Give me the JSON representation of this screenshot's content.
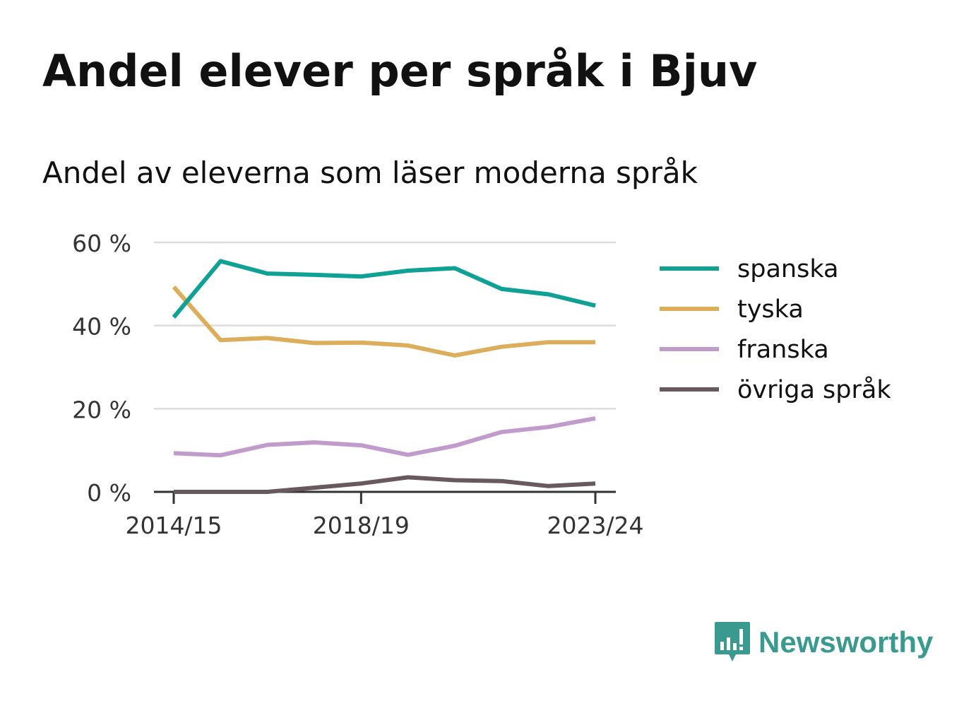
{
  "title": "Andel elever per språk i Bjuv",
  "subtitle": "Andel av eleverna som läser moderna språk",
  "brand": {
    "name": "Newsworthy",
    "icon": "newsworthy-logo-icon",
    "color": "#3a9a90"
  },
  "chart_data": {
    "type": "line",
    "x": [
      "2014/15",
      "2015/16",
      "2016/17",
      "2017/18",
      "2018/19",
      "2019/20",
      "2020/21",
      "2021/22",
      "2022/23",
      "2023/24"
    ],
    "x_tick_labels": [
      "2014/15",
      "2018/19",
      "2023/24"
    ],
    "y_ticks": [
      "0 %",
      "20 %",
      "40 %",
      "60 %"
    ],
    "ylim": [
      0,
      60
    ],
    "grid": true,
    "legend": "right",
    "series": [
      {
        "name": "spanska",
        "color": "#0fa195",
        "values": [
          42,
          55.5,
          52.5,
          52.2,
          51.8,
          53.2,
          53.8,
          48.8,
          47.5,
          44.8
        ]
      },
      {
        "name": "tyska",
        "color": "#dcad5a",
        "values": [
          49.3,
          36.5,
          37,
          35.8,
          35.9,
          35.2,
          32.8,
          34.9,
          36,
          36
        ]
      },
      {
        "name": "franska",
        "color": "#c29bcd",
        "values": [
          9.3,
          8.8,
          11.3,
          11.9,
          11.2,
          8.9,
          11.1,
          14.4,
          15.6,
          17.7
        ]
      },
      {
        "name": "övriga språk",
        "color": "#6a5861",
        "values": [
          0,
          0,
          0,
          1,
          2,
          3.5,
          2.8,
          2.6,
          1.4,
          2
        ]
      }
    ]
  }
}
